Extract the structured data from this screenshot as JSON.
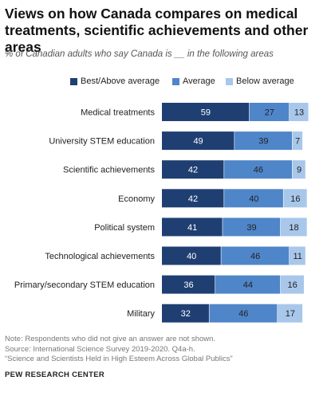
{
  "title": "Views on how Canada compares on medical treatments, scientific achievements and other areas",
  "subtitle": "% of Canadian adults who say Canada is __ in the following areas",
  "legend": {
    "best": "Best/Above average",
    "average": "Average",
    "below": "Below average"
  },
  "notes": {
    "note": "Note: Respondents who did not give an answer are not shown.",
    "source": "Source: International Science Survey 2019-2020. Q4a-h.",
    "report": "“Science and Scientists Held in High Esteem Across Global Publics”"
  },
  "brand": "PEW RESEARCH CENTER",
  "colors": {
    "best": "#1f3f73",
    "average": "#4f86c9",
    "below": "#a8c7ea"
  },
  "chart_data": {
    "type": "bar",
    "orientation": "horizontal",
    "stacked": true,
    "xlim": [
      0,
      100
    ],
    "categories": [
      "Medical treatments",
      "University STEM education",
      "Scientific achievements",
      "Economy",
      "Political system",
      "Technological achievements",
      "Primary/secondary STEM education",
      "Military"
    ],
    "series": [
      {
        "name": "Best/Above average",
        "key": "best",
        "values": [
          59,
          49,
          42,
          42,
          41,
          40,
          36,
          32
        ]
      },
      {
        "name": "Average",
        "key": "average",
        "values": [
          27,
          39,
          46,
          40,
          39,
          46,
          44,
          46
        ]
      },
      {
        "name": "Below average",
        "key": "below",
        "values": [
          13,
          7,
          9,
          16,
          18,
          11,
          16,
          17
        ]
      }
    ]
  }
}
